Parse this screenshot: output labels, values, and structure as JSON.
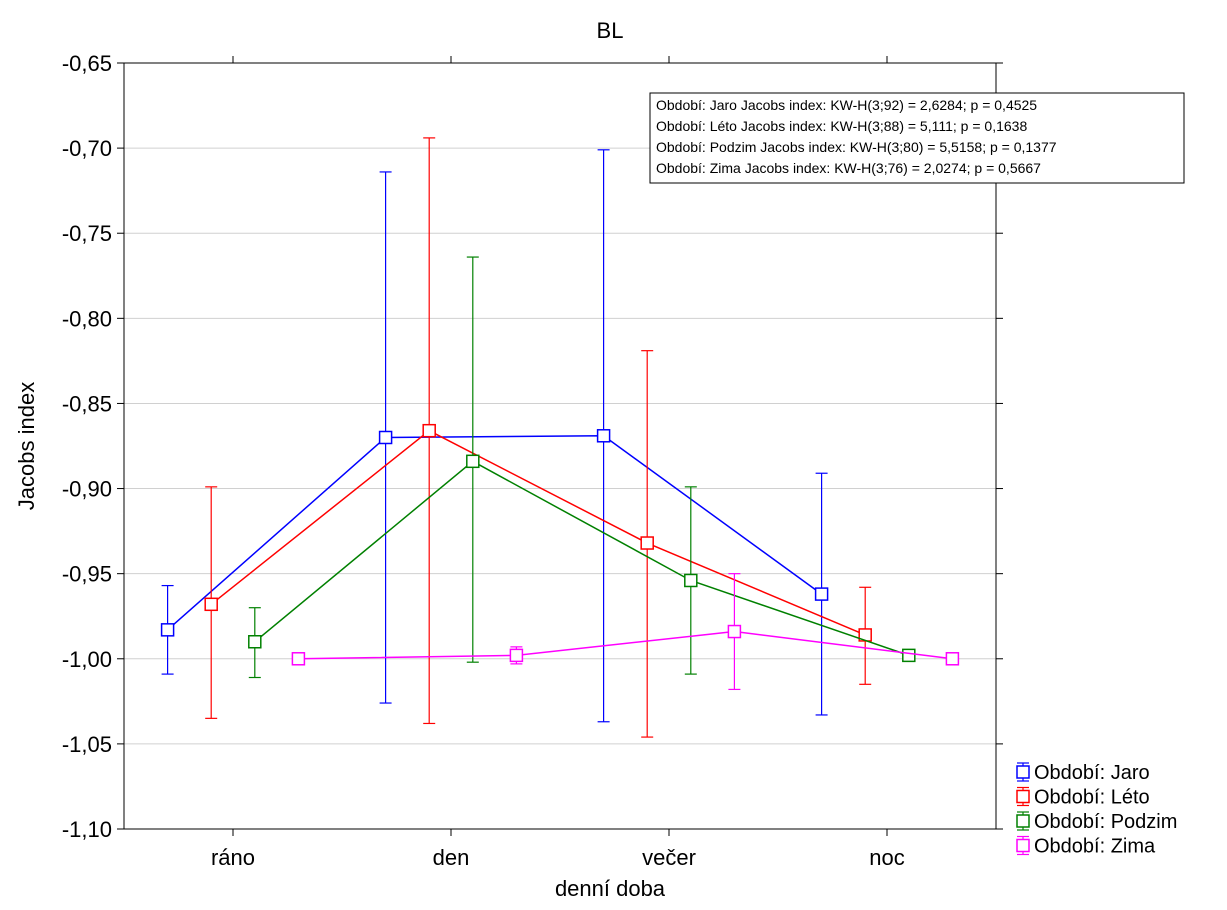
{
  "chart_data": {
    "type": "line",
    "title": "BL",
    "xlabel": "denní doba",
    "ylabel": "Jacobs index",
    "categories": [
      "ráno",
      "den",
      "večer",
      "noc"
    ],
    "ylim": [
      -1.1,
      -0.65
    ],
    "yticks": [
      -0.65,
      -0.7,
      -0.75,
      -0.8,
      -0.85,
      -0.9,
      -0.95,
      -1.0,
      -1.05,
      -1.1
    ],
    "ytick_labels": [
      "-0,65",
      "-0,70",
      "-0,75",
      "-0,80",
      "-0,85",
      "-0,90",
      "-0,95",
      "-1,00",
      "-1,05",
      "-1,10"
    ],
    "grid": true,
    "legend_position": "bottom-right outside",
    "series": [
      {
        "name": "Období: Jaro",
        "color": "#0000ff",
        "values": [
          -0.983,
          -0.87,
          -0.869,
          -0.962
        ],
        "upper": [
          -0.957,
          -0.714,
          -0.701,
          -0.891
        ],
        "lower": [
          -1.009,
          -1.026,
          -1.037,
          -1.033
        ]
      },
      {
        "name": "Období: Léto",
        "color": "#ff0000",
        "values": [
          -0.968,
          -0.866,
          -0.932,
          -0.986
        ],
        "upper": [
          -0.899,
          -0.694,
          -0.819,
          -0.958
        ],
        "lower": [
          -1.035,
          -1.038,
          -1.046,
          -1.015
        ]
      },
      {
        "name": "Období: Podzim",
        "color": "#008000",
        "values": [
          -0.99,
          -0.884,
          -0.954,
          -0.998
        ],
        "upper": [
          -0.97,
          -0.764,
          -0.899,
          -0.998
        ],
        "lower": [
          -1.011,
          -1.002,
          -1.009,
          -0.998
        ]
      },
      {
        "name": "Období: Zima",
        "color": "#ff00ff",
        "values": [
          -1.0,
          -0.998,
          -0.984,
          -1.0
        ],
        "upper": [
          -1.0,
          -0.993,
          -0.95,
          -1.0
        ],
        "lower": [
          -1.0,
          -1.003,
          -1.018,
          -1.0
        ]
      }
    ],
    "annotations": [
      "Období: Jaro  Jacobs index:  KW-H(3;92) = 2,6284; p = 0,4525",
      "Období: Léto  Jacobs index:  KW-H(3;88) = 5,111; p = 0,1638",
      "Období: Podzim  Jacobs index:  KW-H(3;80) = 5,5158; p = 0,1377",
      "Období: Zima  Jacobs index:  KW-H(3;76) = 2,0274; p = 0,5667"
    ]
  }
}
